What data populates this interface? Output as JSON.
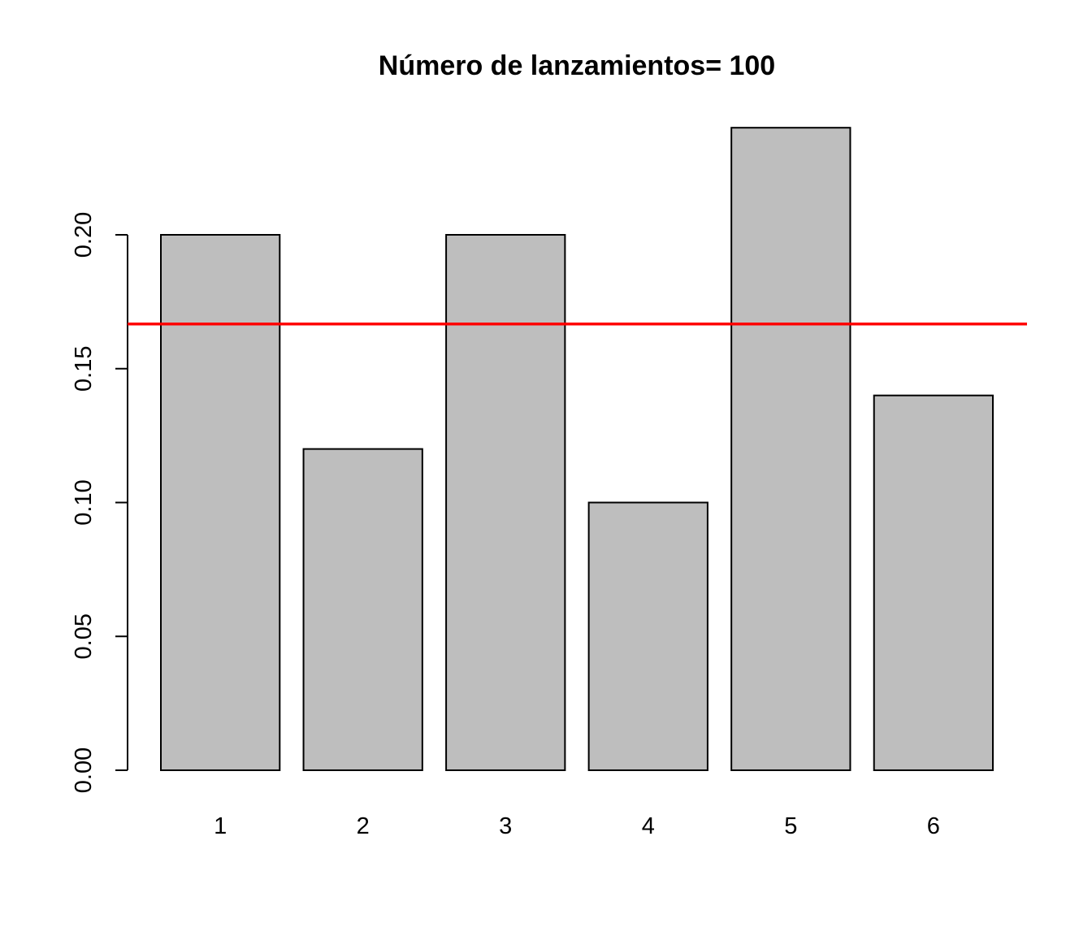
{
  "chart_data": {
    "type": "bar",
    "title": "Número de lanzamientos= 100",
    "xlabel": "",
    "ylabel": "",
    "categories": [
      "1",
      "2",
      "3",
      "4",
      "5",
      "6"
    ],
    "values": [
      0.2,
      0.12,
      0.2,
      0.1,
      0.24,
      0.14
    ],
    "ylim": [
      0,
      0.24
    ],
    "yticks": [
      "0.00",
      "0.05",
      "0.10",
      "0.15",
      "0.20"
    ],
    "grid": false,
    "bar_color": "#bebebe",
    "reference_line": {
      "y": 0.1667,
      "color": "#ff0000"
    }
  }
}
